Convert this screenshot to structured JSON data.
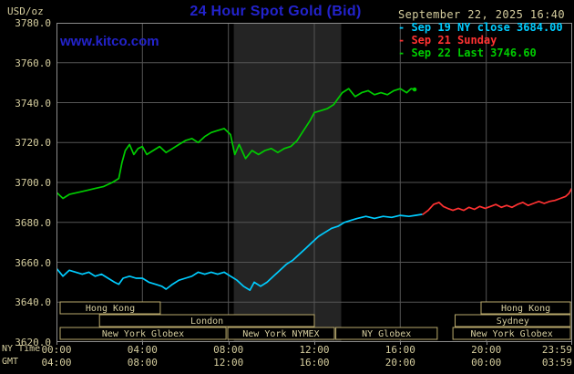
{
  "colors": {
    "background": "#000000",
    "tan": "#d5cd9e",
    "blue": "#2323cc",
    "grid": "#555555",
    "border": "#8c8c8c",
    "band": "#242424",
    "session_border": "#b9a96b",
    "cyan": "#00ccff",
    "red": "#ff3232",
    "green": "#00cc00"
  },
  "header": {
    "unit_label": "USD/oz",
    "title": "24 Hour Spot Gold (Bid)",
    "datetime": "September 22, 2025 16:40",
    "watermark": "www.kitco.com"
  },
  "legend": [
    {
      "label": "- Sep 19 NY close 3684.00",
      "color": "#00ccff"
    },
    {
      "label": "- Sep 21 Sunday",
      "color": "#ff3232"
    },
    {
      "label": "- Sep 22 Last 3746.60",
      "color": "#00cc00"
    }
  ],
  "y_axis": {
    "ticks": [
      "3780.0",
      "3760.0",
      "3740.0",
      "3720.0",
      "3700.0",
      "3680.0",
      "3660.0",
      "3640.0",
      "3620.0"
    ]
  },
  "x_axis": {
    "row1_label": "NY Time",
    "row1": [
      "00:00",
      "04:00",
      "08:00",
      "12:00",
      "16:00",
      "20:00",
      "23:59"
    ],
    "row2_label": "GMT",
    "row2": [
      "04:00",
      "08:00",
      "12:00",
      "16:00",
      "20:00",
      "00:00",
      "03:59"
    ]
  },
  "sessions": [
    {
      "label": "Hong Kong",
      "row": 0,
      "start": 0.17,
      "end": 4.83
    },
    {
      "label": "Hong Kong",
      "row": 0,
      "start": 19.76,
      "end": 23.92
    },
    {
      "label": "London",
      "row": 1,
      "start": 2.0,
      "end": 12.0
    },
    {
      "label": "Sydney",
      "row": 1,
      "start": 18.55,
      "end": 23.92
    },
    {
      "label": "New York Globex",
      "row": 2,
      "start": 0.17,
      "end": 7.89
    },
    {
      "label": "New York NYMEX",
      "row": 2,
      "start": 7.97,
      "end": 12.93
    },
    {
      "label": "NY Globex",
      "row": 2,
      "start": 13.0,
      "end": 17.72
    },
    {
      "label": "New York Globex",
      "row": 2,
      "start": 18.45,
      "end": 23.92
    }
  ],
  "chart_data": {
    "type": "line",
    "title": "24 Hour Spot Gold (Bid)",
    "ylabel": "USD/oz",
    "ylim": [
      3620,
      3780
    ],
    "ytick_step": 20,
    "x_unit": "hours_ny_time",
    "xlim": [
      0,
      24
    ],
    "x_gridlines_hours": [
      0,
      4,
      8,
      12,
      16,
      20,
      23.983
    ],
    "nymex_band_hours": [
      8.25,
      13.25
    ],
    "legend_position": "top-right",
    "grid": true,
    "series": [
      {
        "key": "sep19",
        "name": "Sep 19 NY close",
        "close": 3684.0,
        "color": "#00ccff",
        "points": [
          [
            0,
            3657
          ],
          [
            0.3,
            3653
          ],
          [
            0.6,
            3656
          ],
          [
            0.9,
            3655
          ],
          [
            1.2,
            3654
          ],
          [
            1.5,
            3655
          ],
          [
            1.8,
            3653
          ],
          [
            2.1,
            3654
          ],
          [
            2.4,
            3652
          ],
          [
            2.7,
            3650
          ],
          [
            2.9,
            3649
          ],
          [
            3.1,
            3652
          ],
          [
            3.4,
            3653
          ],
          [
            3.7,
            3652
          ],
          [
            4,
            3652
          ],
          [
            4.3,
            3650
          ],
          [
            4.6,
            3649
          ],
          [
            4.9,
            3648
          ],
          [
            5.1,
            3646.5
          ],
          [
            5.4,
            3649
          ],
          [
            5.7,
            3651
          ],
          [
            6,
            3652
          ],
          [
            6.3,
            3653
          ],
          [
            6.6,
            3655
          ],
          [
            6.9,
            3654
          ],
          [
            7.2,
            3655
          ],
          [
            7.5,
            3654
          ],
          [
            7.8,
            3655
          ],
          [
            8.1,
            3653
          ],
          [
            8.4,
            3651
          ],
          [
            8.7,
            3648
          ],
          [
            9,
            3646
          ],
          [
            9.2,
            3650
          ],
          [
            9.5,
            3648
          ],
          [
            9.8,
            3650
          ],
          [
            10.1,
            3653
          ],
          [
            10.4,
            3656
          ],
          [
            10.7,
            3659
          ],
          [
            11,
            3661
          ],
          [
            11.3,
            3664
          ],
          [
            11.6,
            3667
          ],
          [
            11.9,
            3670
          ],
          [
            12.2,
            3673
          ],
          [
            12.5,
            3675
          ],
          [
            12.8,
            3677
          ],
          [
            13.1,
            3678
          ],
          [
            13.4,
            3680
          ],
          [
            13.7,
            3681
          ],
          [
            14,
            3682
          ],
          [
            14.4,
            3683
          ],
          [
            14.8,
            3682
          ],
          [
            15.2,
            3683
          ],
          [
            15.6,
            3682.5
          ],
          [
            16,
            3683.5
          ],
          [
            16.4,
            3683
          ],
          [
            16.7,
            3683.5
          ],
          [
            17,
            3684
          ]
        ]
      },
      {
        "key": "sep21",
        "name": "Sep 21 Sunday",
        "color": "#ff3232",
        "points": [
          [
            17.05,
            3684
          ],
          [
            17.3,
            3686
          ],
          [
            17.55,
            3689
          ],
          [
            17.8,
            3690
          ],
          [
            18,
            3688
          ],
          [
            18.2,
            3687
          ],
          [
            18.45,
            3686
          ],
          [
            18.7,
            3687
          ],
          [
            18.95,
            3686
          ],
          [
            19.2,
            3687.5
          ],
          [
            19.45,
            3686.5
          ],
          [
            19.7,
            3688
          ],
          [
            19.95,
            3687
          ],
          [
            20.2,
            3688
          ],
          [
            20.45,
            3689
          ],
          [
            20.7,
            3687.5
          ],
          [
            20.95,
            3688.5
          ],
          [
            21.2,
            3687.5
          ],
          [
            21.45,
            3689
          ],
          [
            21.7,
            3690
          ],
          [
            21.95,
            3688.5
          ],
          [
            22.2,
            3689.5
          ],
          [
            22.45,
            3690.5
          ],
          [
            22.7,
            3689.5
          ],
          [
            22.95,
            3690.5
          ],
          [
            23.2,
            3691
          ],
          [
            23.45,
            3692
          ],
          [
            23.7,
            3693
          ],
          [
            23.85,
            3694.5
          ],
          [
            23.98,
            3697
          ]
        ]
      },
      {
        "key": "sep22",
        "name": "Sep 22",
        "last": 3746.6,
        "color": "#00cc00",
        "points": [
          [
            0,
            3695
          ],
          [
            0.3,
            3692
          ],
          [
            0.6,
            3694
          ],
          [
            1,
            3695
          ],
          [
            1.4,
            3696
          ],
          [
            1.8,
            3697
          ],
          [
            2.2,
            3698
          ],
          [
            2.6,
            3700
          ],
          [
            2.9,
            3702
          ],
          [
            3.05,
            3710
          ],
          [
            3.2,
            3716
          ],
          [
            3.4,
            3719
          ],
          [
            3.6,
            3714
          ],
          [
            3.8,
            3717
          ],
          [
            4,
            3718
          ],
          [
            4.2,
            3714
          ],
          [
            4.5,
            3716
          ],
          [
            4.8,
            3718
          ],
          [
            5.1,
            3715
          ],
          [
            5.4,
            3717
          ],
          [
            5.7,
            3719
          ],
          [
            6,
            3721
          ],
          [
            6.3,
            3722
          ],
          [
            6.6,
            3720
          ],
          [
            6.9,
            3723
          ],
          [
            7.2,
            3725
          ],
          [
            7.5,
            3726
          ],
          [
            7.8,
            3727
          ],
          [
            8.1,
            3724
          ],
          [
            8.3,
            3714
          ],
          [
            8.5,
            3719
          ],
          [
            8.8,
            3712
          ],
          [
            9.1,
            3716
          ],
          [
            9.4,
            3714
          ],
          [
            9.7,
            3716
          ],
          [
            10,
            3717
          ],
          [
            10.3,
            3715
          ],
          [
            10.6,
            3717
          ],
          [
            10.9,
            3718
          ],
          [
            11.2,
            3721
          ],
          [
            11.5,
            3726
          ],
          [
            11.8,
            3731
          ],
          [
            12,
            3735
          ],
          [
            12.3,
            3736
          ],
          [
            12.6,
            3737
          ],
          [
            12.9,
            3739
          ],
          [
            13.1,
            3742
          ],
          [
            13.3,
            3745
          ],
          [
            13.6,
            3747
          ],
          [
            13.9,
            3743
          ],
          [
            14.2,
            3745
          ],
          [
            14.5,
            3746
          ],
          [
            14.8,
            3744
          ],
          [
            15.1,
            3745
          ],
          [
            15.4,
            3744
          ],
          [
            15.7,
            3746
          ],
          [
            16,
            3747
          ],
          [
            16.3,
            3745
          ],
          [
            16.5,
            3747
          ],
          [
            16.67,
            3746.6
          ]
        ]
      }
    ]
  }
}
